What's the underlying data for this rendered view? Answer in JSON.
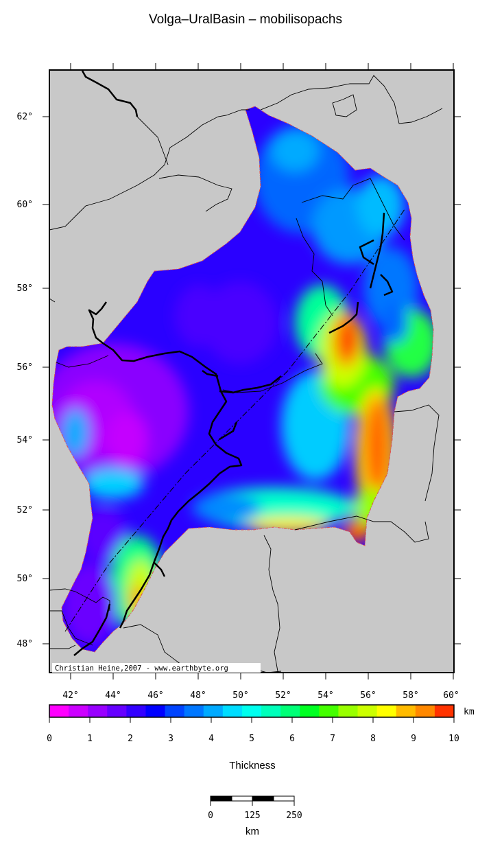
{
  "title": "Volga–UralBasin – mobilisopachs",
  "credit": "Christian Heine,2007 - www.earthbyte.org",
  "map": {
    "lat_ticks": [
      "48°",
      "50°",
      "52°",
      "54°",
      "56°",
      "58°",
      "60°",
      "62°"
    ],
    "lon_ticks": [
      "42°",
      "44°",
      "46°",
      "48°",
      "50°",
      "52°",
      "54°",
      "56°",
      "58°",
      "60°"
    ],
    "land_color": "#c8c8c8"
  },
  "colorbar": {
    "unit": "km",
    "labels": [
      "0",
      "1",
      "2",
      "3",
      "4",
      "5",
      "6",
      "7",
      "8",
      "9",
      "10"
    ],
    "title": "Thickness",
    "colors": [
      "#ff00ff",
      "#cc00ff",
      "#9900ff",
      "#6600ff",
      "#3300ff",
      "#0000ff",
      "#0044ff",
      "#0077ff",
      "#00aaff",
      "#00ddff",
      "#00ffee",
      "#00ffbb",
      "#00ff77",
      "#00ff22",
      "#44ff00",
      "#99ff00",
      "#ccff00",
      "#ffff00",
      "#ffbb00",
      "#ff8800",
      "#ff3300"
    ]
  },
  "scalebar": {
    "labels": [
      "0",
      "125",
      "250"
    ],
    "unit": "km"
  }
}
